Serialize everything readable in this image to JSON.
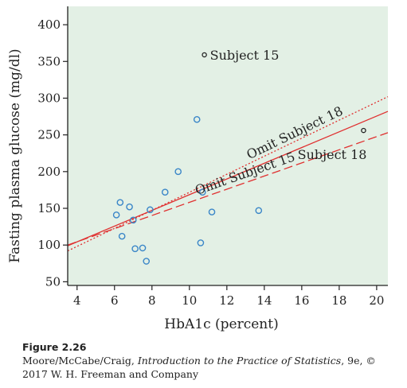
{
  "chart_data": {
    "type": "scatter",
    "xlabel": "HbA1c (percent)",
    "ylabel": "Fasting plasma glucose (mg/dl)",
    "xlim": [
      3.5,
      20.6
    ],
    "ylim": [
      45,
      425
    ],
    "xticks": [
      4,
      6,
      8,
      10,
      12,
      14,
      16,
      18,
      20
    ],
    "yticks": [
      50,
      100,
      150,
      200,
      250,
      300,
      350,
      400
    ],
    "grid": false,
    "background": "#e3f0e5",
    "point_color": "#3a86c8",
    "line_color": "#e03030",
    "points": [
      {
        "x": 6.1,
        "y": 141
      },
      {
        "x": 6.3,
        "y": 158
      },
      {
        "x": 6.4,
        "y": 112
      },
      {
        "x": 6.8,
        "y": 152
      },
      {
        "x": 7.0,
        "y": 134
      },
      {
        "x": 7.1,
        "y": 95
      },
      {
        "x": 7.5,
        "y": 96
      },
      {
        "x": 7.7,
        "y": 78
      },
      {
        "x": 7.9,
        "y": 148
      },
      {
        "x": 8.7,
        "y": 172
      },
      {
        "x": 9.4,
        "y": 200
      },
      {
        "x": 10.4,
        "y": 271
      },
      {
        "x": 10.6,
        "y": 103
      },
      {
        "x": 10.7,
        "y": 172
      },
      {
        "x": 11.2,
        "y": 145
      },
      {
        "x": 13.7,
        "y": 147
      }
    ],
    "highlighted_points": [
      {
        "label": "Subject 15",
        "x": 10.8,
        "y": 359
      },
      {
        "label": "Subject 18",
        "x": 19.3,
        "y": 256
      }
    ],
    "lines": [
      {
        "label": "",
        "style": "solid",
        "x": [
          3.5,
          20.6
        ],
        "y": [
          99,
          282
        ]
      },
      {
        "label": "Omit Subject 18",
        "style": "dotted",
        "x": [
          3.5,
          20.6
        ],
        "y": [
          92,
          302
        ]
      },
      {
        "label": "Omit Subject 15",
        "style": "dashed",
        "x": [
          3.5,
          20.6
        ],
        "y": [
          100,
          253
        ]
      }
    ]
  },
  "caption": {
    "figure": "Figure 2.26",
    "authors": "Moore/McCabe/Craig, ",
    "book": "Introduction to the Practice of Statistics",
    "edition": ", 9e, ©",
    "line2": "2017 W. H. Freeman and Company"
  }
}
